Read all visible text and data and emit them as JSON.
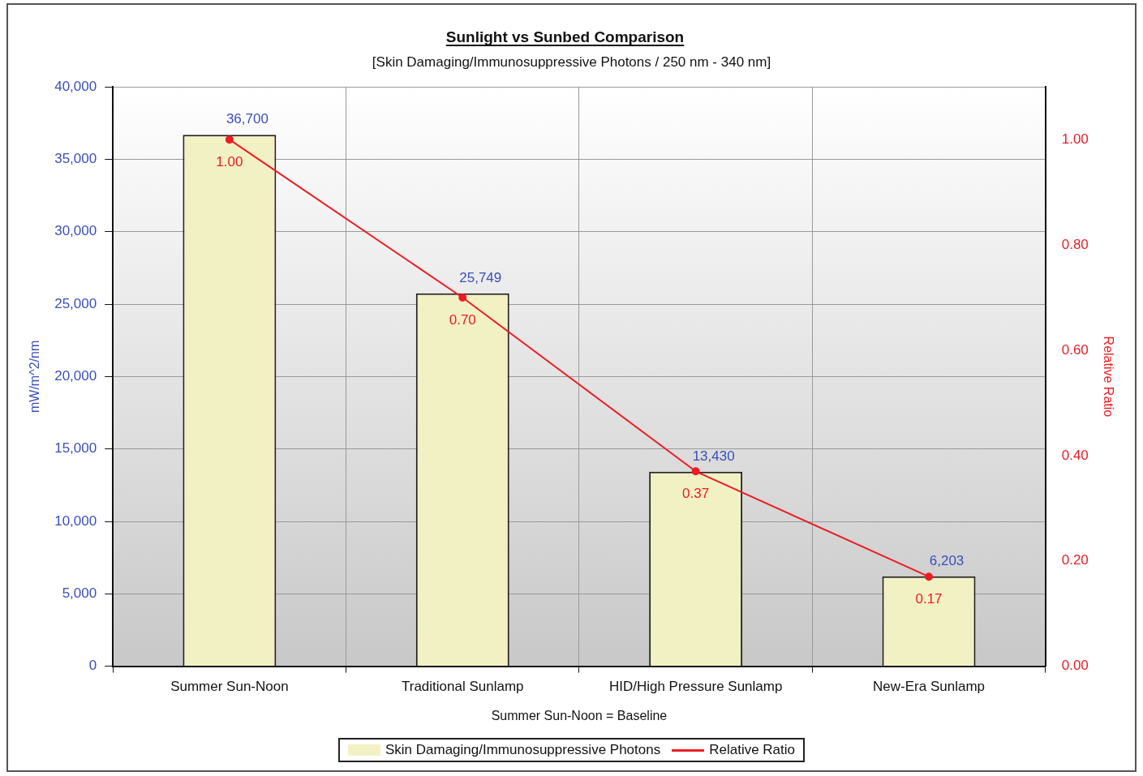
{
  "chart_data": {
    "type": "bar",
    "title": "Sunlight vs Sunbed Comparison",
    "subtitle": "[Skin Damaging/Immunosuppressive Photons / 250 nm - 340 nm]",
    "ylabel": "mW/m^2/nm",
    "y2label": "Relative Ratio",
    "categories": [
      "Summer Sun-Noon",
      "Traditional Sunlamp",
      "HID/High Pressure Sunlamp",
      "New-Era Sunlamp"
    ],
    "series": [
      {
        "name": "Skin Damaging/Immunosuppressive Photons",
        "type": "bar",
        "color": "#f2f1c4",
        "values": [
          36700,
          25749,
          13430,
          6203
        ],
        "value_labels": [
          "36,700",
          "25,749",
          "13,430",
          "6,203"
        ]
      },
      {
        "name": "Relative Ratio",
        "type": "line",
        "axis": "y2",
        "color": "#ec1c24",
        "values": [
          1.0,
          0.7,
          0.37,
          0.17
        ],
        "value_labels": [
          "1.00",
          "0.70",
          "0.37",
          "0.17"
        ]
      }
    ],
    "ylim": [
      0,
      40000
    ],
    "yticks": [
      {
        "value": 0,
        "label": "0"
      },
      {
        "value": 5000,
        "label": "5,000"
      },
      {
        "value": 10000,
        "label": "10,000"
      },
      {
        "value": 15000,
        "label": "15,000"
      },
      {
        "value": 20000,
        "label": "20,000"
      },
      {
        "value": 25000,
        "label": "25,000"
      },
      {
        "value": 30000,
        "label": "30,000"
      },
      {
        "value": 35000,
        "label": "35,000"
      },
      {
        "value": 40000,
        "label": "40,000"
      }
    ],
    "y2lim": [
      0,
      1.1
    ],
    "y2ticks": [
      {
        "value": 0,
        "label": "0.00"
      },
      {
        "value": 0.2,
        "label": "0.20"
      },
      {
        "value": 0.4,
        "label": "0.40"
      },
      {
        "value": 0.6,
        "label": "0.60"
      },
      {
        "value": 0.8,
        "label": "0.80"
      },
      {
        "value": 1.0,
        "label": "1.00"
      }
    ],
    "annotations": [
      "Summer Sun-Noon = Baseline"
    ],
    "grid": true,
    "legend": "bottom",
    "marker": "circle",
    "line_style": "solid"
  }
}
